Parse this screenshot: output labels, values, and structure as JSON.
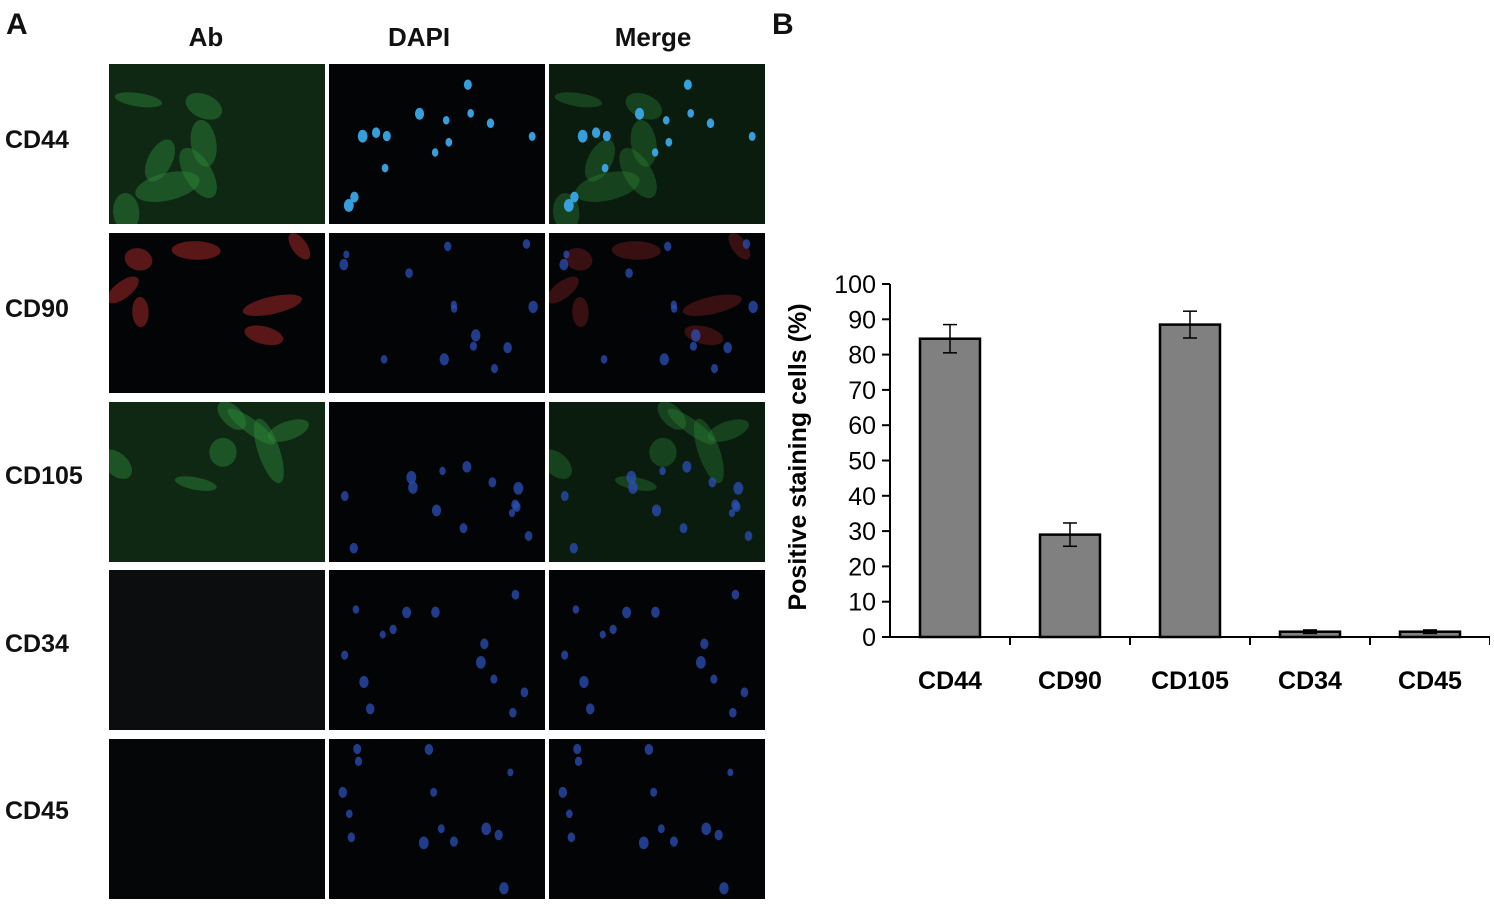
{
  "panels": {
    "a": "A",
    "b": "B"
  },
  "columns": [
    "Ab",
    "DAPI",
    "Merge"
  ],
  "rows": [
    "CD44",
    "CD90",
    "CD105",
    "CD34",
    "CD45"
  ],
  "stain_colors": {
    "CD44": "#2f8a3a",
    "CD90": "#a02828",
    "CD105": "#2f8a3a",
    "CD34": "#0b0d0f",
    "CD45": "#050608",
    "dapi_bright": "#3aa6e8",
    "dapi_dim": "#2c4fb8"
  },
  "chart_data": {
    "type": "bar",
    "categories": [
      "CD44",
      "CD90",
      "CD105",
      "CD34",
      "CD45"
    ],
    "values": [
      84.5,
      29,
      88.5,
      1.5,
      1.5
    ],
    "errors": [
      4,
      3.3,
      3.8,
      0.5,
      0.5
    ],
    "ylabel": "Positive staining cells (%)",
    "xlabel": "",
    "ylim": [
      0,
      100
    ],
    "yticks": [
      0,
      10,
      20,
      30,
      40,
      50,
      60,
      70,
      80,
      90,
      100
    ],
    "bar_color": "#808080",
    "grid": false
  }
}
